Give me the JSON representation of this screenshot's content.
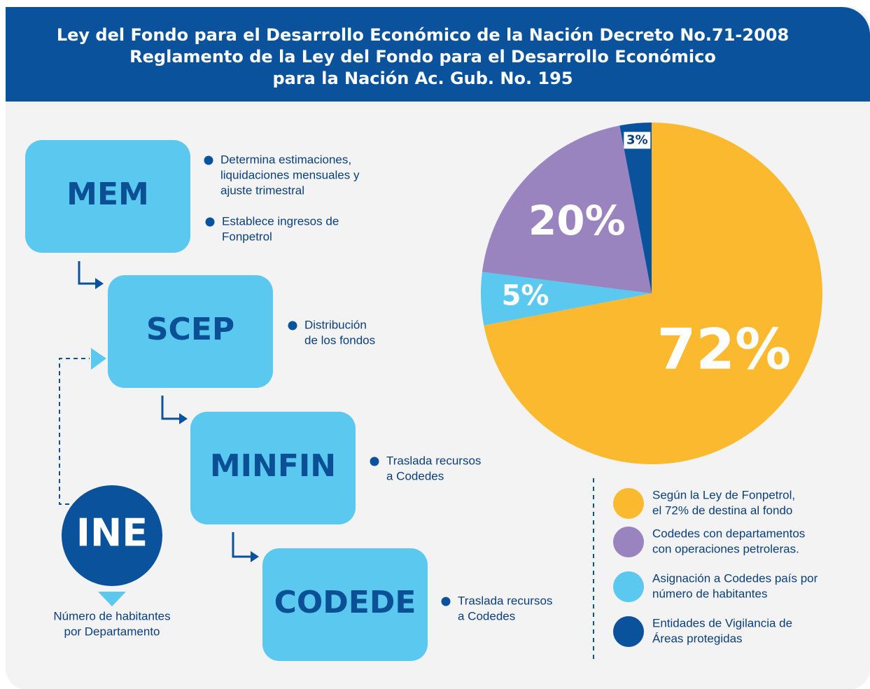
{
  "header": {
    "title": [
      "Ley del Fondo para el Desarrollo Económico de la Nación Decreto No.71-2008",
      "Reglamento de la Ley del Fondo para el Desarrollo Económico",
      "para la Nación Ac. Gub. No. 195"
    ]
  },
  "nodes": [
    {
      "label": "MEM",
      "notes": [
        [
          "Determina estimaciones,",
          "liquidaciones mensuales y",
          "ajuste trimestral"
        ],
        [
          "Establece ingresos de",
          "Fonpetrol"
        ]
      ]
    },
    {
      "label": "SCEP",
      "notes": [
        [
          "Distribución",
          "de los fondos"
        ]
      ]
    },
    {
      "label": "MINFIN",
      "notes": [
        [
          "Traslada recursos",
          "a Codedes"
        ]
      ]
    },
    {
      "label": "CODEDE",
      "notes": [
        [
          "Traslada recursos",
          "a Codedes"
        ]
      ]
    },
    {
      "label": "INE",
      "notes": [
        [
          "Número de habitantes",
          "por Departamento"
        ]
      ]
    }
  ],
  "chart_data": {
    "type": "pie",
    "categories": [
      [
        "Según la Ley de Fonpetrol,",
        "el 72% de destina al fondo"
      ],
      [
        "Asignación a Codedes país por",
        "número de habitantes"
      ],
      [
        "Codedes con departamentos",
        "con operaciones petroleras."
      ],
      [
        "Entidades de Vigilancia de",
        "Áreas protegidas"
      ]
    ],
    "values": [
      72,
      5,
      20,
      3
    ],
    "value_labels": [
      "72%",
      "5%",
      "20%",
      "3%"
    ],
    "colors": [
      "#fbb92f",
      "#5bc8ef",
      "#9a84bf",
      "#0b529c"
    ]
  }
}
